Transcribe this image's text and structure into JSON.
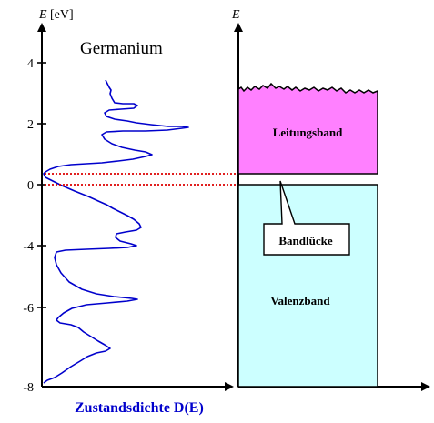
{
  "left_axis": {
    "label_symbol": "E",
    "label_unit": "[eV]",
    "ticks": [
      "4",
      "2",
      "0",
      "-4",
      "-6",
      "-8"
    ]
  },
  "right_axis": {
    "label_symbol": "E"
  },
  "material_title": "Germanium",
  "x_axis_label": "Zustandsdichte  D(E)",
  "bands": {
    "conduction": {
      "label": "Leitungsband",
      "color": "#ff80ff"
    },
    "valence": {
      "label": "Valenzband",
      "color": "#ccffff"
    },
    "gap": {
      "label": "Bandlücke"
    }
  },
  "colors": {
    "dos_curve": "#0000cc",
    "gap_lines": "#dd0000",
    "x_label": "#0000cc"
  }
}
